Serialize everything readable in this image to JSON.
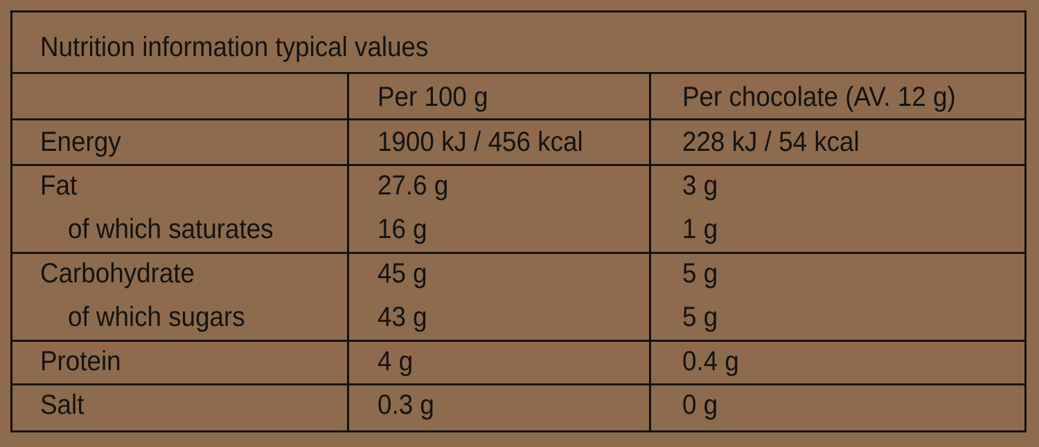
{
  "title": "Nutrition information typical values",
  "table": {
    "header": [
      "Per 100 g",
      "Per chocolate (AV. 12 g)"
    ],
    "groups": [
      {
        "rows": [
          [
            "Energy",
            "1900 kJ / 456 kcal",
            "228 kJ / 54 kcal"
          ]
        ]
      },
      {
        "rows": [
          [
            "Fat",
            "27.6 g",
            "3 g"
          ],
          [
            "of which saturates",
            "16 g",
            "1 g"
          ]
        ]
      },
      {
        "rows": [
          [
            "Carbohydrate",
            "45 g",
            "5 g"
          ],
          [
            "of which sugars",
            "43 g",
            "5 g"
          ]
        ]
      },
      {
        "rows": [
          [
            "Protein",
            "4 g",
            "0.4 g"
          ]
        ]
      },
      {
        "rows": [
          [
            "Salt",
            "0.3 g",
            "0 g"
          ]
        ]
      }
    ]
  }
}
